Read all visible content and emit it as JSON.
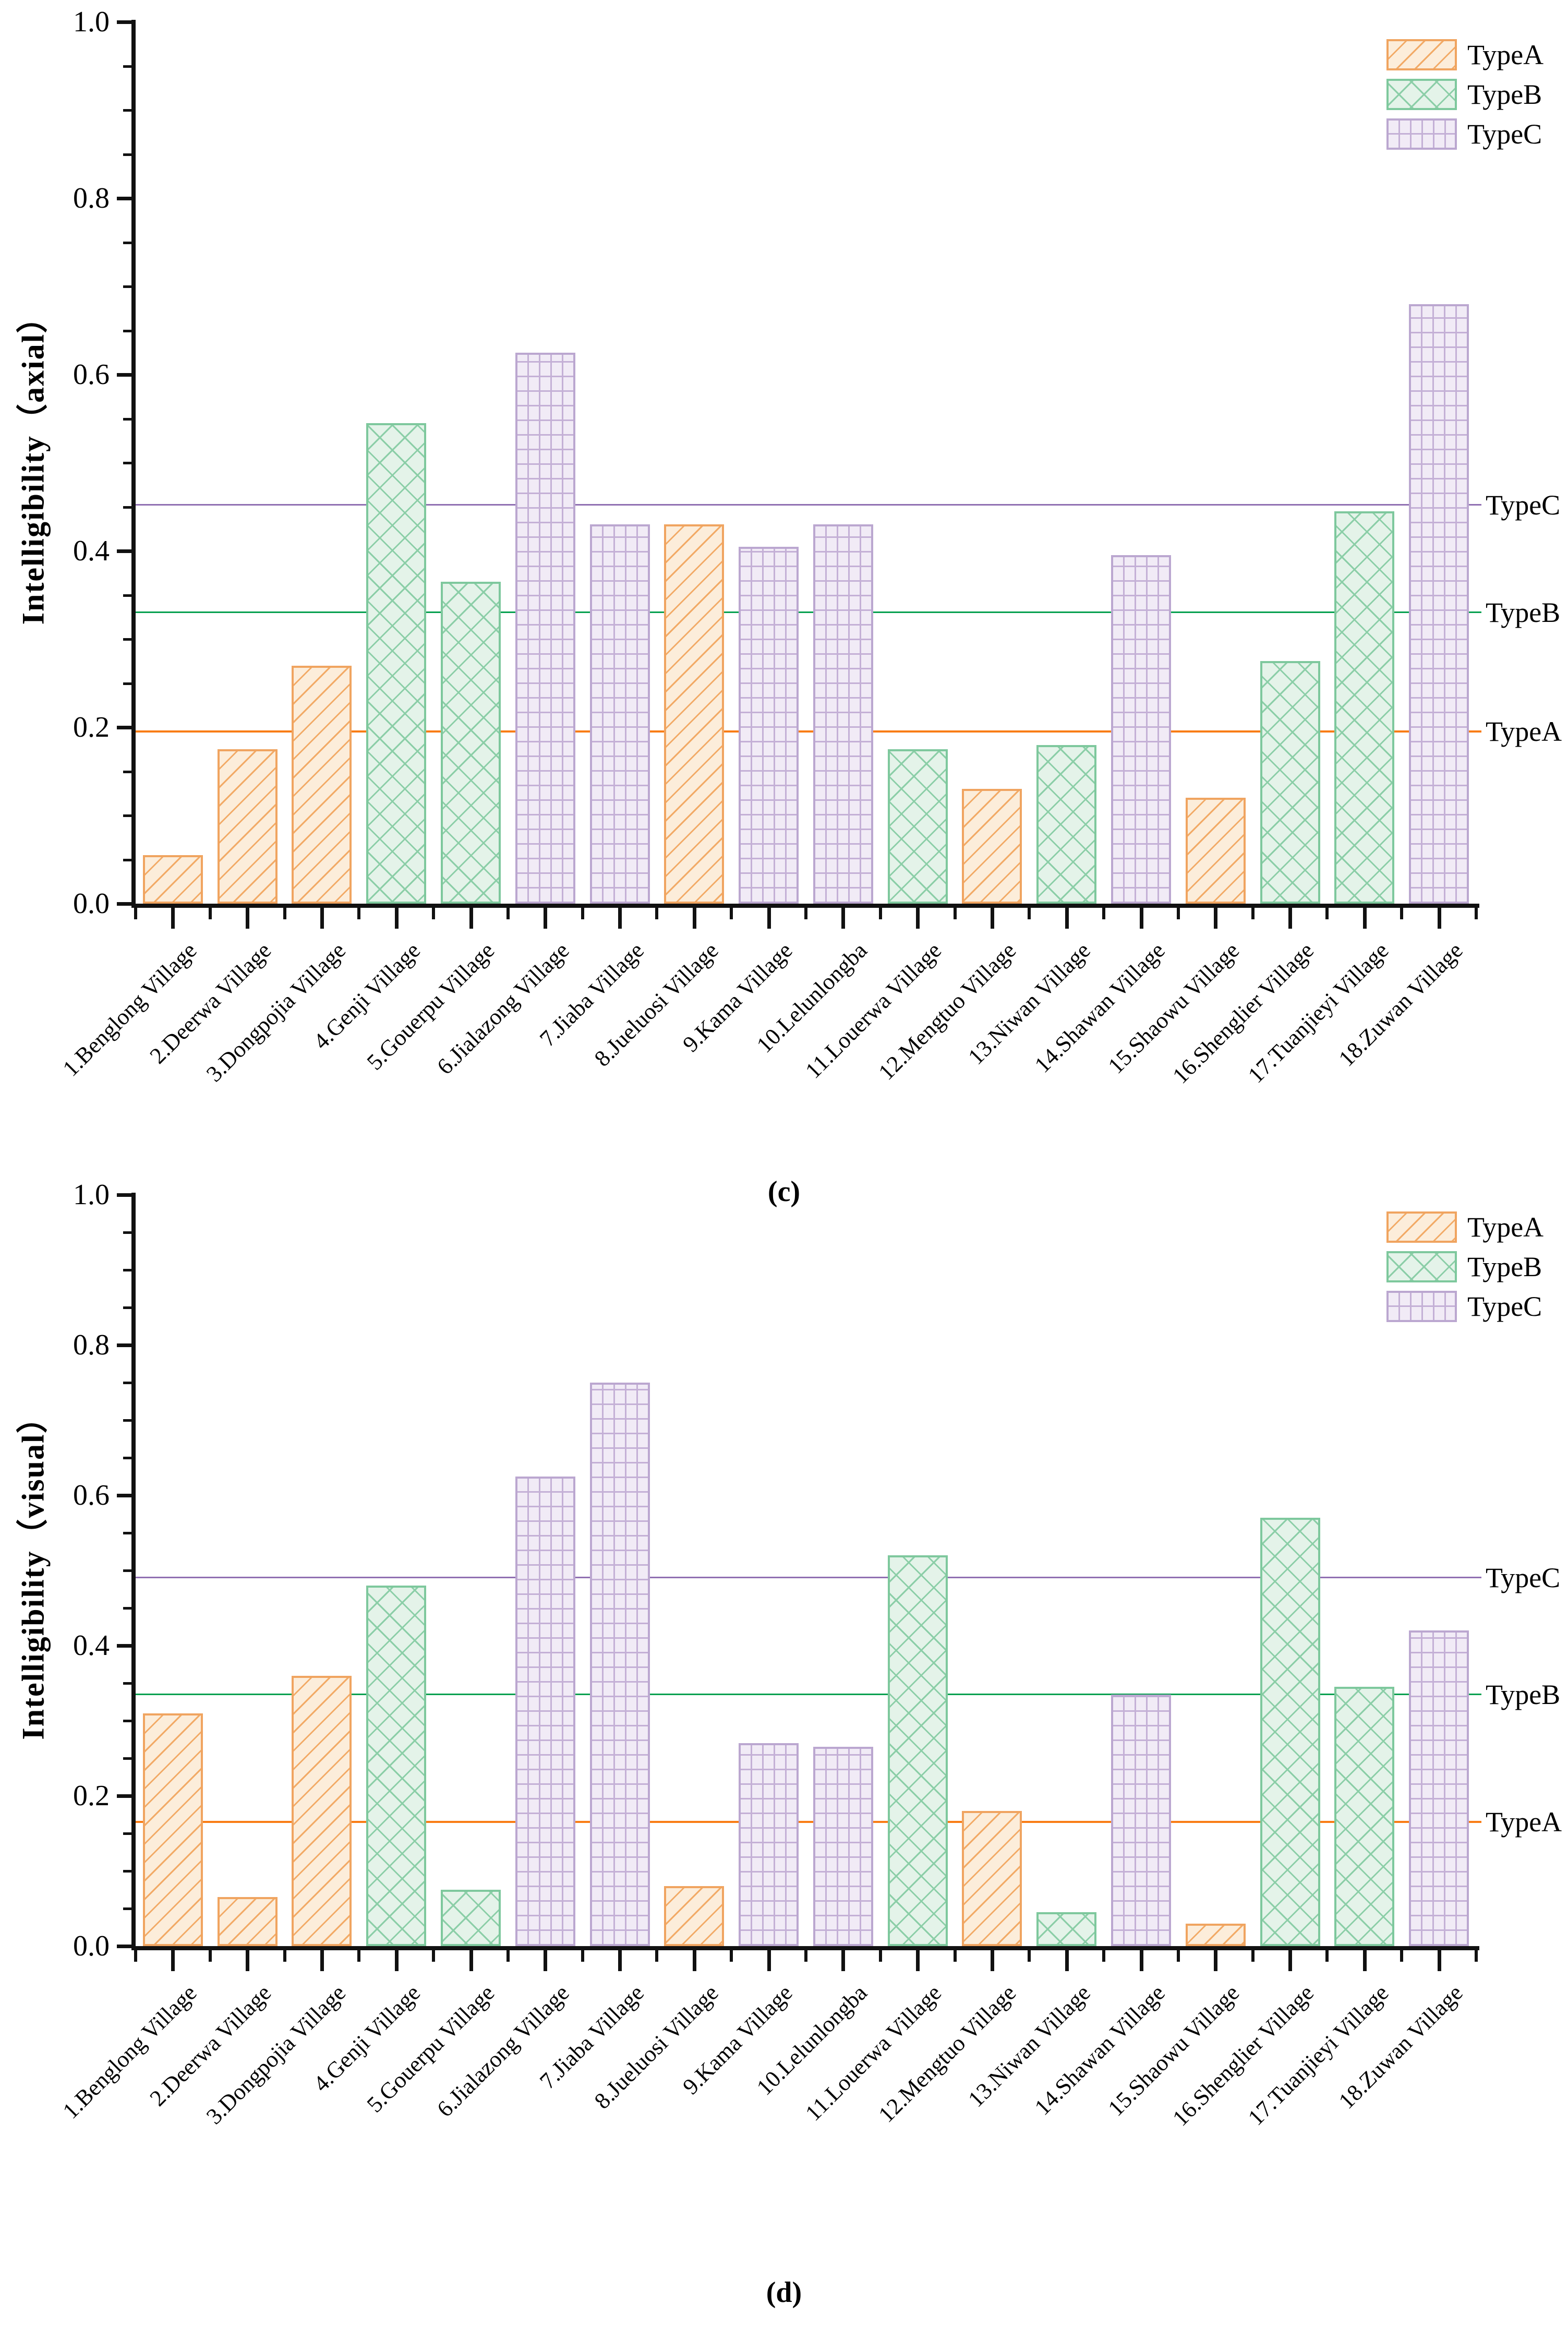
{
  "figure_title": "",
  "legend": {
    "entries": [
      "TypeA",
      "TypeB",
      "TypeC"
    ]
  },
  "colors": {
    "TypeA": {
      "fill": "#FCEDDA",
      "hatch": "#F2AA66",
      "edge": "#F0A460",
      "refline": "#F97D16"
    },
    "TypeB": {
      "fill": "#E4F3E9",
      "hatch": "#8BCEA7",
      "edge": "#7EC89D",
      "refline": "#07A050"
    },
    "TypeC": {
      "fill": "#F1EBF6",
      "hatch": "#C4B0D6",
      "edge": "#BBA7D0",
      "refline": "#9070B2"
    },
    "axis": "#111111",
    "text": "#000000"
  },
  "chart_data": [
    {
      "id": "c",
      "type": "bar",
      "caption": "(c)",
      "ylabel": "Intelligibility（axial）",
      "xlabel": "",
      "ylim": [
        0.0,
        1.0
      ],
      "ytick_labels": [
        "1.0",
        "0.8",
        "0.6",
        "0.4",
        "0.2",
        "0.0"
      ],
      "ytick_values": [
        1.0,
        0.8,
        0.6,
        0.4,
        0.2,
        0.0
      ],
      "minor_tick_step": 0.05,
      "grid": false,
      "legend_position": "top-right",
      "categories": [
        "1.Benglong Village",
        "2.Deerwa Village",
        "3.Dongpojia Village",
        "4.Genji Village",
        "5.Gouerpu Village",
        "6.Jialazong Village",
        "7.Jiaba Village",
        "8.Jueluosi Village",
        "9.Kama Village",
        "10.Lelunlongba",
        "11.Louerwa Village",
        "12.Mengtuo Village",
        "13.Niwan Village",
        "14.Shawan Village",
        "15.Shaowu Village",
        "16.Shenglier Village",
        "17.Tuanjieyi Village",
        "18.Zuwan Village"
      ],
      "bar_types": [
        "TypeA",
        "TypeA",
        "TypeA",
        "TypeB",
        "TypeB",
        "TypeC",
        "TypeC",
        "TypeA",
        "TypeC",
        "TypeC",
        "TypeB",
        "TypeA",
        "TypeB",
        "TypeC",
        "TypeA",
        "TypeB",
        "TypeB",
        "TypeC"
      ],
      "values": [
        0.055,
        0.175,
        0.27,
        0.545,
        0.365,
        0.625,
        0.43,
        0.43,
        0.405,
        0.43,
        0.175,
        0.13,
        0.18,
        0.395,
        0.12,
        0.275,
        0.445,
        0.68
      ],
      "ref_lines": [
        {
          "label": "TypeC",
          "value": 0.452,
          "type": "TypeC"
        },
        {
          "label": "TypeB",
          "value": 0.33,
          "type": "TypeB"
        },
        {
          "label": "TypeA",
          "value": 0.195,
          "type": "TypeA"
        }
      ]
    },
    {
      "id": "d",
      "type": "bar",
      "caption": "(d)",
      "ylabel": "Intelligibility（visual）",
      "xlabel": "",
      "ylim": [
        0.0,
        1.0
      ],
      "ytick_labels": [
        "1.0",
        "0.8",
        "0.6",
        "0.4",
        "0.2",
        "0.0"
      ],
      "ytick_values": [
        1.0,
        0.8,
        0.6,
        0.4,
        0.2,
        0.0
      ],
      "minor_tick_step": 0.05,
      "grid": false,
      "legend_position": "top-right",
      "categories": [
        "1.Benglong Village",
        "2.Deerwa Village",
        "3.Dongpojia Village",
        "4.Genji Village",
        "5.Gouerpu Village",
        "6.Jialazong Village",
        "7.Jiaba Village",
        "8.Jueluosi Village",
        "9.Kama Village",
        "10.Lelunlongba",
        "11.Louerwa Village",
        "12.Mengtuo Village",
        "13.Niwan Village",
        "14.Shawan Village",
        "15.Shaowu Village",
        "16.Shenglier Village",
        "17.Tuanjieyi Village",
        "18.Zuwan Village"
      ],
      "bar_types": [
        "TypeA",
        "TypeA",
        "TypeA",
        "TypeB",
        "TypeB",
        "TypeC",
        "TypeC",
        "TypeA",
        "TypeC",
        "TypeC",
        "TypeB",
        "TypeA",
        "TypeB",
        "TypeC",
        "TypeA",
        "TypeB",
        "TypeB",
        "TypeC"
      ],
      "values": [
        0.31,
        0.065,
        0.36,
        0.48,
        0.075,
        0.625,
        0.75,
        0.08,
        0.27,
        0.265,
        0.52,
        0.18,
        0.045,
        0.335,
        0.03,
        0.57,
        0.345,
        0.42
      ],
      "ref_lines": [
        {
          "label": "TypeC",
          "value": 0.49,
          "type": "TypeC"
        },
        {
          "label": "TypeB",
          "value": 0.335,
          "type": "TypeB"
        },
        {
          "label": "TypeA",
          "value": 0.165,
          "type": "TypeA"
        }
      ]
    }
  ]
}
